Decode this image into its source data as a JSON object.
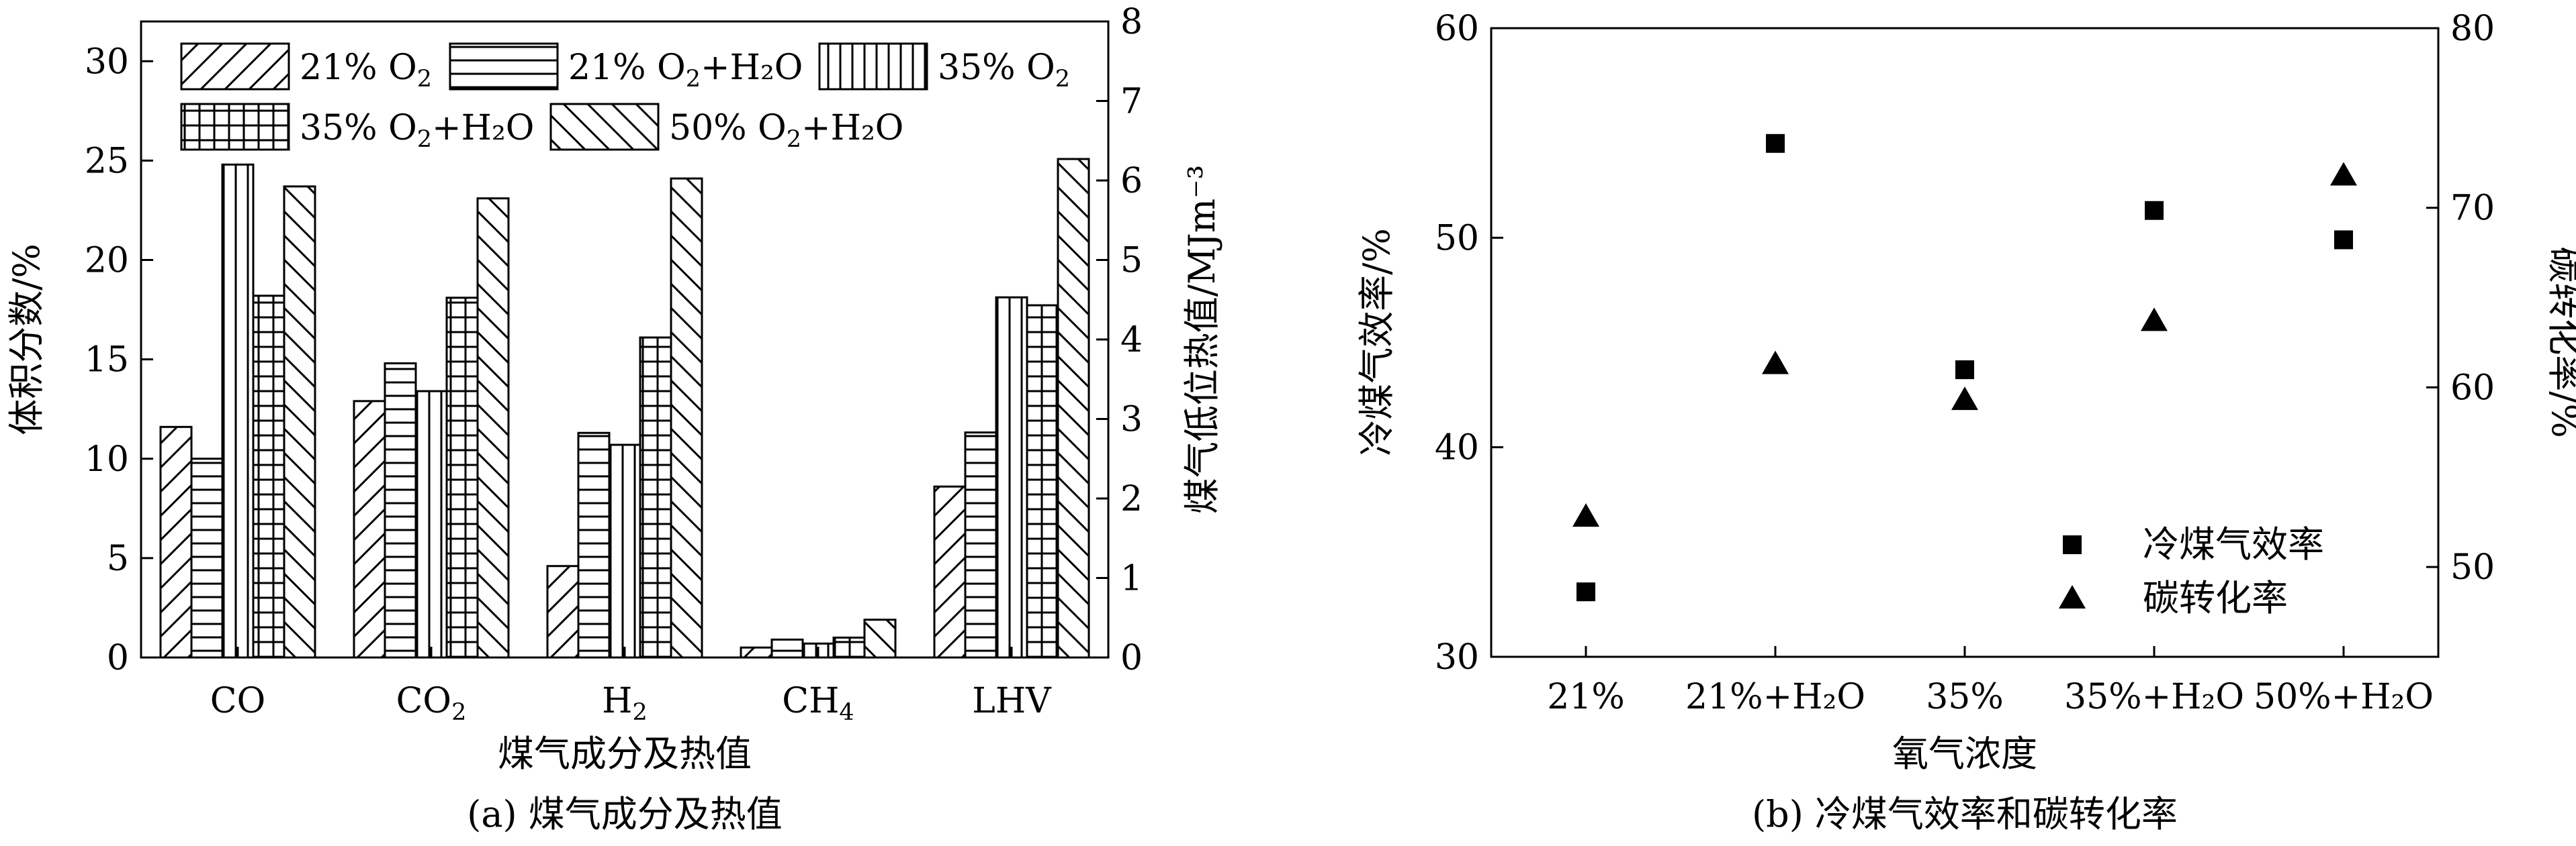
{
  "chart_data": [
    {
      "id": "a",
      "type": "bar",
      "caption": "(a) 煤气成分及热值",
      "xlabel": "煤气成分及热值",
      "ylabel": "体积分数/%",
      "y2label": "煤气低位热值/MJm⁻³",
      "ylim": [
        0,
        32
      ],
      "y2lim": [
        0,
        8
      ],
      "yticks": [
        "0",
        "5",
        "10",
        "15",
        "20",
        "25",
        "30"
      ],
      "y2ticks": [
        "0",
        "1",
        "2",
        "3",
        "4",
        "5",
        "6",
        "7",
        "8"
      ],
      "categories": [
        {
          "text": "CO",
          "sub": ""
        },
        {
          "text": "CO",
          "sub": "2"
        },
        {
          "text": "H",
          "sub": "2"
        },
        {
          "text": "CH",
          "sub": "4"
        },
        {
          "text": "LHV",
          "sub": ""
        }
      ],
      "series": [
        {
          "pattern": "diag-up",
          "legend": {
            "pre": "21% O",
            "sub": "2",
            "post": ""
          },
          "values": [
            11.6,
            12.9,
            4.6,
            0.5,
            2.15
          ]
        },
        {
          "pattern": "horiz",
          "legend": {
            "pre": "21% O",
            "sub": "2",
            "post": "+H₂O"
          },
          "values": [
            10.0,
            14.8,
            11.3,
            0.9,
            2.83
          ]
        },
        {
          "pattern": "vert",
          "legend": {
            "pre": "35% O",
            "sub": "2",
            "post": ""
          },
          "values": [
            24.8,
            13.4,
            10.7,
            0.7,
            4.53
          ]
        },
        {
          "pattern": "grid",
          "legend": {
            "pre": "35% O",
            "sub": "2",
            "post": "+H₂O"
          },
          "values": [
            18.2,
            18.1,
            16.1,
            1.0,
            4.43
          ]
        },
        {
          "pattern": "diag-down",
          "legend": {
            "pre": "50% O",
            "sub": "2",
            "post": "+H₂O"
          },
          "values": [
            23.7,
            23.1,
            24.1,
            1.9,
            6.27
          ]
        }
      ],
      "secondary_axis_category": "LHV"
    },
    {
      "id": "b",
      "type": "scatter",
      "caption": "(b) 冷煤气效率和碳转化率",
      "xlabel": "氧气浓度",
      "ylabel": "冷煤气效率/%",
      "y2label": "碳转化率/%",
      "ylim": [
        30,
        60
      ],
      "y2lim": [
        45,
        80
      ],
      "yticks": [
        "30",
        "40",
        "50",
        "60"
      ],
      "y2ticks": [
        "50",
        "60",
        "70",
        "80"
      ],
      "categories": [
        "21%",
        "21%+H₂O",
        "35%",
        "35%+H₂O",
        "50%+H₂O"
      ],
      "series": [
        {
          "name": "冷煤气效率",
          "marker": "square",
          "axis": "left",
          "values": [
            33.1,
            54.5,
            43.7,
            51.3,
            49.9
          ]
        },
        {
          "name": "碳转化率",
          "marker": "triangle",
          "axis": "right",
          "values": [
            52.8,
            61.3,
            59.3,
            63.7,
            71.8
          ]
        }
      ]
    }
  ]
}
